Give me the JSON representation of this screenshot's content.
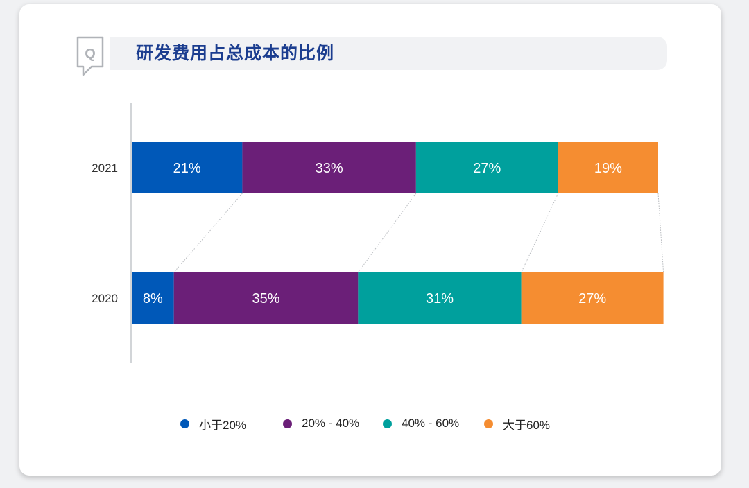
{
  "title": "研发费用占总成本的比例",
  "icon": "q-speech-bubble-icon",
  "icon_letter": "Q",
  "chart_data": {
    "type": "bar",
    "orientation": "horizontal",
    "stacked": true,
    "categories": [
      "2021",
      "2020"
    ],
    "series": [
      {
        "name": "小于20%",
        "color": "#0058b8",
        "values": [
          21,
          8
        ],
        "labels": [
          "21%",
          "8%"
        ]
      },
      {
        "name": "20% - 40%",
        "color": "#6b1f78",
        "values": [
          33,
          35
        ],
        "labels": [
          "33%",
          "35%"
        ]
      },
      {
        "name": "40% - 60%",
        "color": "#00a09d",
        "values": [
          27,
          31
        ],
        "labels": [
          "27%",
          "31%"
        ]
      },
      {
        "name": "大于60%",
        "color": "#f58d31",
        "values": [
          19,
          27
        ],
        "labels": [
          "19%",
          "27%"
        ]
      }
    ],
    "xlim": [
      0,
      100
    ],
    "connector_lines": true,
    "legend_position": "bottom",
    "grid": false
  }
}
